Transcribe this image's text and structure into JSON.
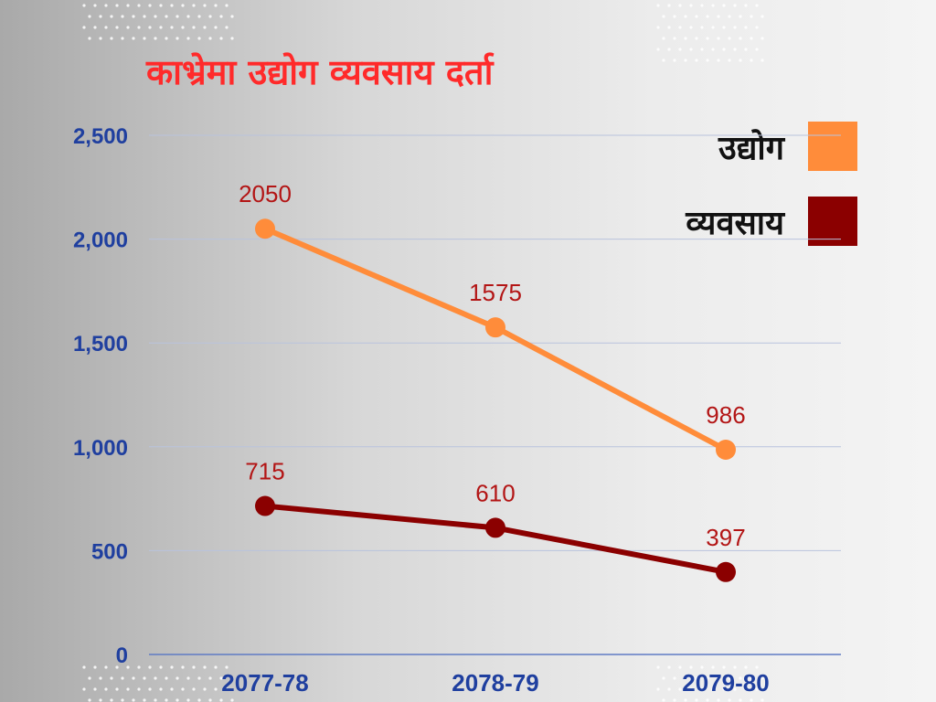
{
  "chart_data": {
    "type": "line",
    "title": "काभ्रेमा उद्योग व्यवसाय दर्ता",
    "categories": [
      "2077-78",
      "2078-79",
      "2079-80"
    ],
    "series": [
      {
        "name": "उद्योग",
        "values": [
          2050,
          1575,
          986
        ],
        "color": "#ff8c3a"
      },
      {
        "name": "व्यवसाय",
        "values": [
          715,
          610,
          397
        ],
        "color": "#8b0000"
      }
    ],
    "yticks": [
      "0",
      "500",
      "1,000",
      "1,500",
      "2,000",
      "2,500"
    ],
    "ytick_values": [
      0,
      500,
      1000,
      1500,
      2000,
      2500
    ],
    "ylim": [
      0,
      2500
    ],
    "grid": true,
    "legend_position": "top-right"
  }
}
